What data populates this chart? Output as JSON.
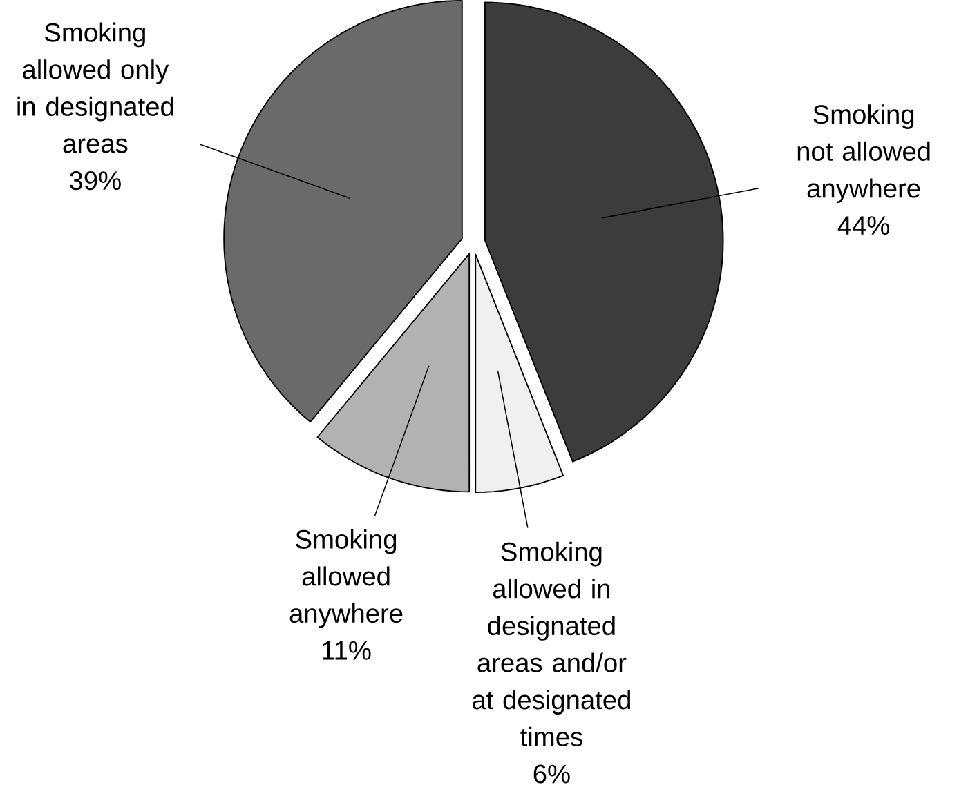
{
  "chart_data": {
    "type": "pie",
    "categories": [
      "Smoking not allowed anywhere",
      "Smoking allowed in designated areas and/or at designated times",
      "Smoking allowed anywhere",
      "Smoking allowed only in designated areas"
    ],
    "values": [
      44,
      6,
      11,
      39
    ],
    "value_labels": [
      "44%",
      "6%",
      "11%",
      "39%"
    ],
    "colors": [
      "#3c3c3c",
      "#f0f0f0",
      "#b2b2b2",
      "#6a6a6a"
    ]
  }
}
